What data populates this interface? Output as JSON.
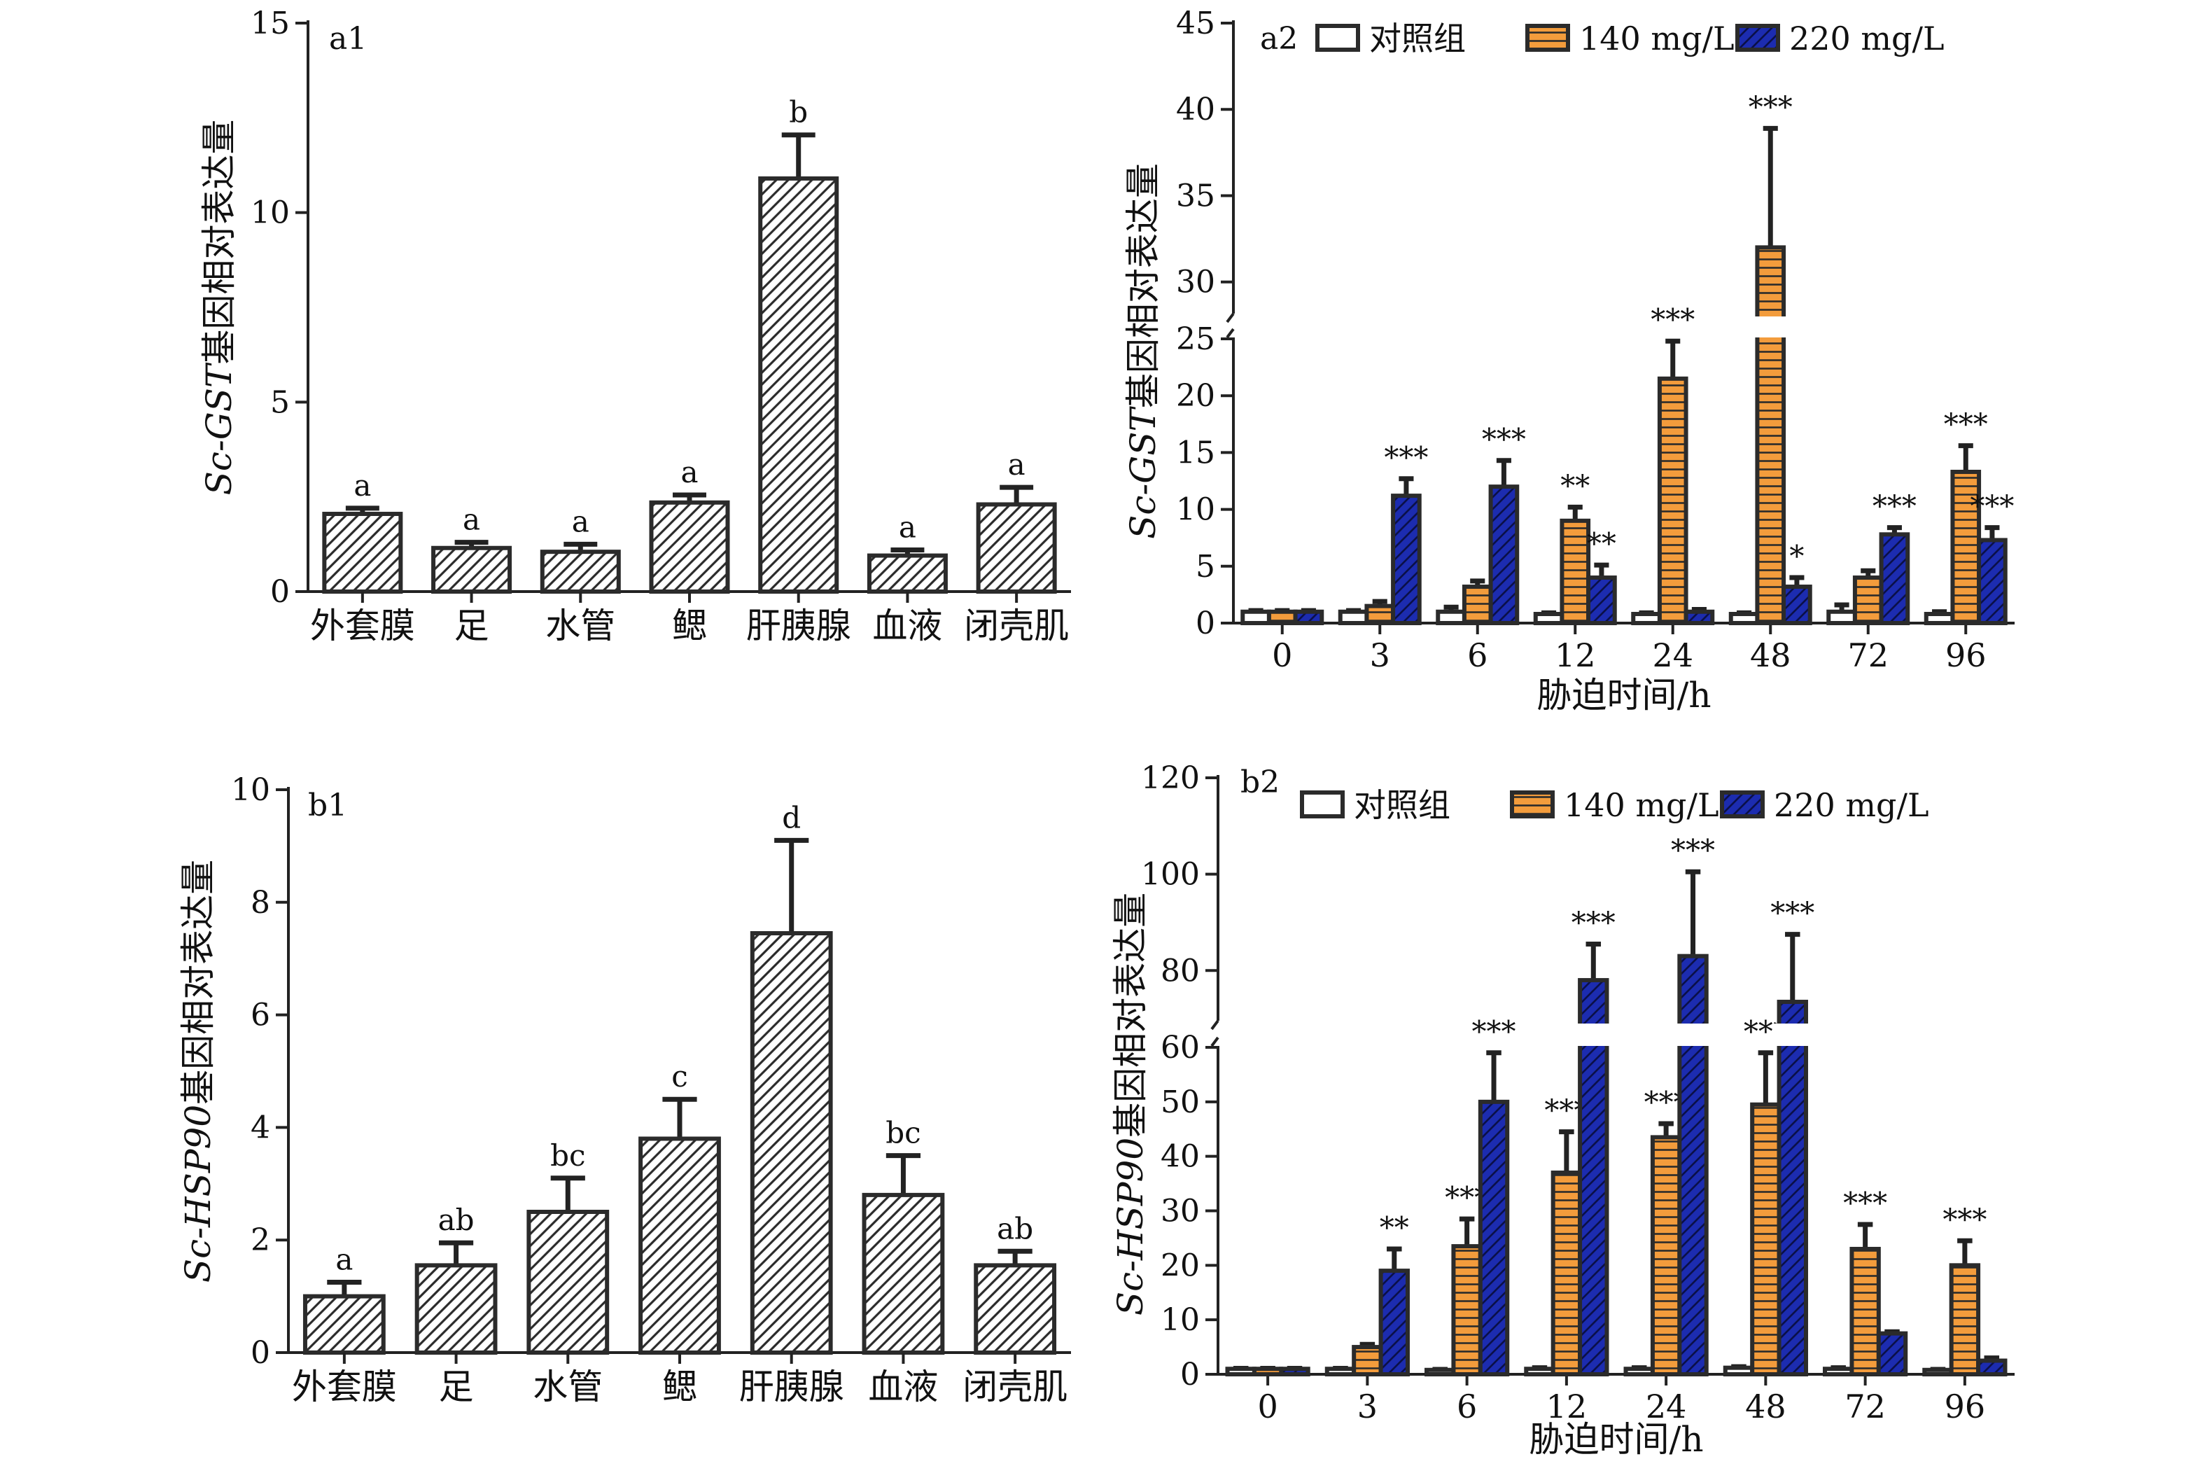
{
  "colors": {
    "control": "#ffffff",
    "mg140": "#f39c3c",
    "mg220": "#1c2cb0",
    "axis": "#222222",
    "bar_outline": "#2b2b2b"
  },
  "chart_data": [
    {
      "id": "a1",
      "panel_label": "a1",
      "type": "bar",
      "ylabel": "Sc-GST基因相对表达量",
      "ylabel_italic_part": "Sc-GST",
      "ylabel_plain_part": "基因相对表达量",
      "xlabel": "",
      "ylim": [
        0,
        15
      ],
      "yticks": [
        0,
        5,
        10,
        15
      ],
      "categories": [
        "外套膜",
        "足",
        "水管",
        "鳃",
        "肝胰腺",
        "血液",
        "闭壳肌"
      ],
      "values": [
        2.05,
        1.15,
        1.05,
        2.35,
        10.9,
        0.95,
        2.3
      ],
      "errors": [
        0.15,
        0.15,
        0.2,
        0.2,
        1.15,
        0.15,
        0.45
      ],
      "significance": [
        "a",
        "a",
        "a",
        "a",
        "b",
        "a",
        "a"
      ],
      "fill": "diagonal-hatch"
    },
    {
      "id": "a2",
      "panel_label": "a2",
      "type": "bar",
      "ylabel": "Sc-GST基因相对表达量",
      "ylabel_italic_part": "Sc-GST",
      "ylabel_plain_part": "基因相对表达量",
      "xlabel": "胁迫时间/h",
      "axis_break": {
        "lower": [
          0,
          25
        ],
        "upper": [
          28,
          45
        ]
      },
      "yticks": [
        0,
        5,
        10,
        15,
        20,
        25,
        30,
        35,
        40,
        45
      ],
      "legend_position": "top",
      "categories": [
        "0",
        "3",
        "6",
        "12",
        "24",
        "48",
        "72",
        "96"
      ],
      "series": [
        {
          "name": "对照组",
          "color_key": "control",
          "values": [
            1.0,
            1.0,
            1.0,
            0.8,
            0.8,
            0.8,
            1.0,
            0.8
          ],
          "errors": [
            0.1,
            0.1,
            0.4,
            0.1,
            0.1,
            0.1,
            0.6,
            0.2
          ],
          "significance": [
            "",
            "",
            "",
            "",
            "",
            "",
            "",
            ""
          ]
        },
        {
          "name": "140 mg/L",
          "color_key": "mg140",
          "values": [
            1.0,
            1.5,
            3.2,
            9.0,
            21.5,
            32.0,
            4.0,
            13.3
          ],
          "errors": [
            0.1,
            0.4,
            0.5,
            1.2,
            3.3,
            6.9,
            0.6,
            2.3
          ],
          "significance": [
            "",
            "",
            "",
            "**",
            "***",
            "***",
            "",
            "***"
          ]
        },
        {
          "name": "220 mg/L",
          "color_key": "mg220",
          "values": [
            1.0,
            11.2,
            12.0,
            4.0,
            1.0,
            3.2,
            7.8,
            7.3
          ],
          "errors": [
            0.1,
            1.5,
            2.3,
            1.1,
            0.2,
            0.8,
            0.6,
            1.1
          ],
          "significance": [
            "",
            "***",
            "***",
            "**",
            "",
            "*",
            "***",
            "***"
          ]
        }
      ]
    },
    {
      "id": "b1",
      "panel_label": "b1",
      "type": "bar",
      "ylabel": "Sc-HSP90基因相对表达量",
      "ylabel_italic_part": "Sc-HSP90",
      "ylabel_plain_part": "基因相对表达量",
      "xlabel": "",
      "ylim": [
        0,
        10
      ],
      "yticks": [
        0,
        2,
        4,
        6,
        8,
        10
      ],
      "categories": [
        "外套膜",
        "足",
        "水管",
        "鳃",
        "肝胰腺",
        "血液",
        "闭壳肌"
      ],
      "values": [
        1.0,
        1.55,
        2.5,
        3.8,
        7.45,
        2.8,
        1.55
      ],
      "errors": [
        0.25,
        0.4,
        0.6,
        0.7,
        1.65,
        0.7,
        0.25
      ],
      "significance": [
        "a",
        "ab",
        "bc",
        "c",
        "d",
        "bc",
        "ab"
      ],
      "fill": "diagonal-hatch"
    },
    {
      "id": "b2",
      "panel_label": "b2",
      "type": "bar",
      "ylabel": "Sc-HSP90基因相对表达量",
      "ylabel_italic_part": "Sc-HSP90",
      "ylabel_plain_part": "基因相对表达量",
      "xlabel": "胁迫时间/h",
      "axis_break": {
        "lower": [
          0,
          60
        ],
        "upper": [
          69,
          120
        ]
      },
      "yticks": [
        0,
        10,
        20,
        30,
        40,
        50,
        60,
        80,
        100,
        120
      ],
      "legend_position": "top",
      "categories": [
        "0",
        "3",
        "6",
        "12",
        "24",
        "48",
        "72",
        "96"
      ],
      "series": [
        {
          "name": "对照组",
          "color_key": "control",
          "values": [
            1.0,
            1.0,
            0.8,
            1.0,
            1.0,
            1.2,
            1.0,
            0.8
          ],
          "errors": [
            0.1,
            0.1,
            0.1,
            0.2,
            0.2,
            0.2,
            0.2,
            0.1
          ],
          "significance": [
            "",
            "",
            "",
            "",
            "",
            "",
            "",
            ""
          ]
        },
        {
          "name": "140 mg/L",
          "color_key": "mg140",
          "values": [
            1.0,
            5.0,
            23.5,
            37.0,
            43.5,
            49.5,
            23.0,
            20.0
          ],
          "errors": [
            0.1,
            0.5,
            5.0,
            7.5,
            2.5,
            9.5,
            4.5,
            4.5
          ],
          "significance": [
            "",
            "",
            "***",
            "***",
            "***",
            "***",
            "***",
            "***"
          ]
        },
        {
          "name": "220 mg/L",
          "color_key": "mg220",
          "values": [
            1.0,
            19.0,
            50.0,
            78.0,
            83.0,
            73.5,
            7.5,
            2.5
          ],
          "errors": [
            0.1,
            4.0,
            9.0,
            7.5,
            17.5,
            14.0,
            0.3,
            0.5
          ],
          "significance": [
            "",
            "**",
            "***",
            "***",
            "***",
            "***",
            "",
            ""
          ]
        }
      ]
    }
  ]
}
